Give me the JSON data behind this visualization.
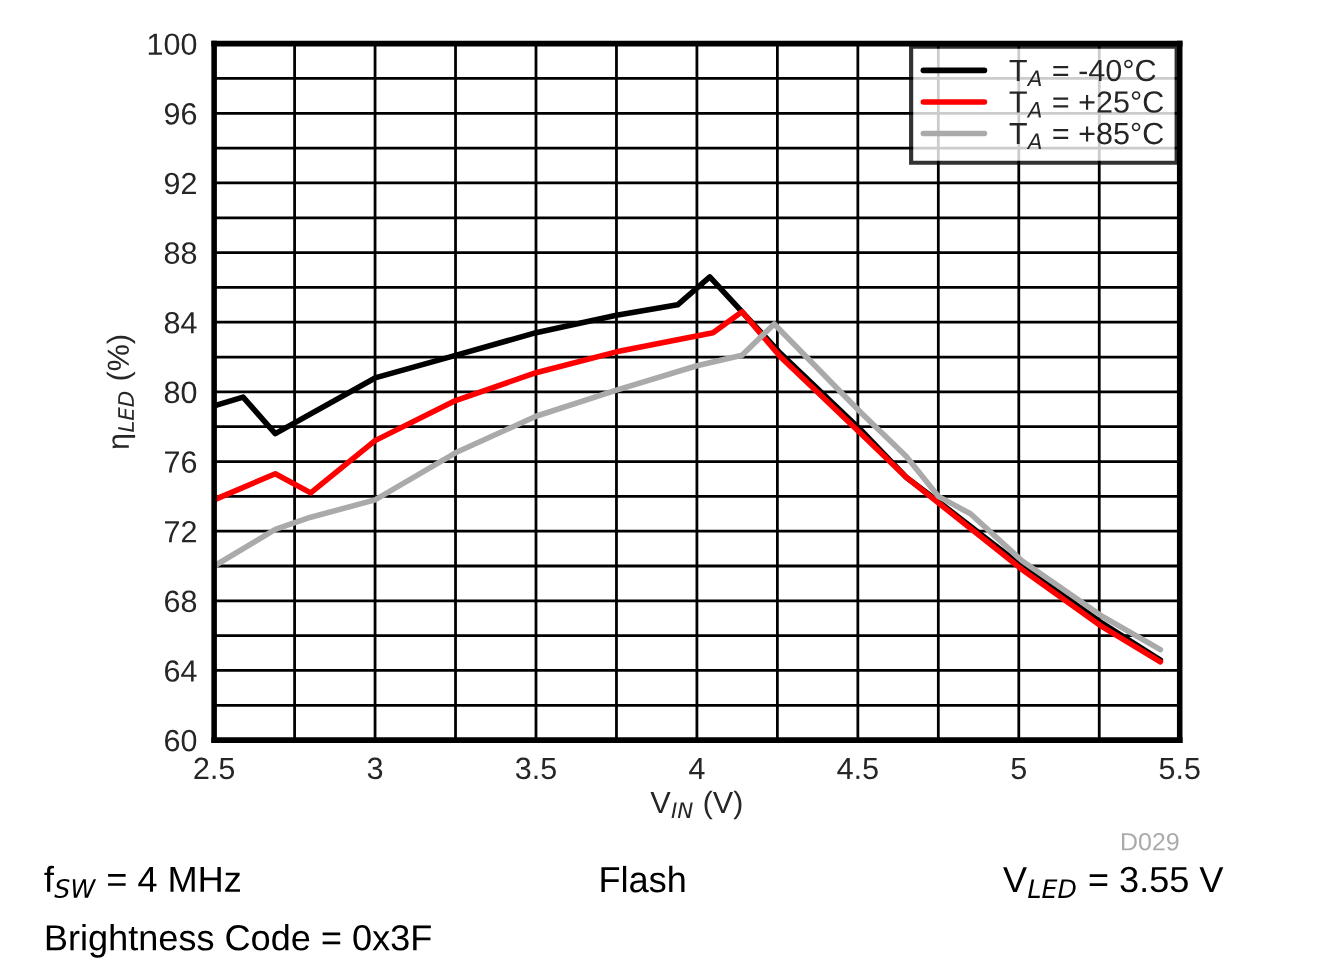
{
  "chart_data": {
    "type": "line",
    "xlabel": "V$_{IN}$ (V)",
    "ylabel": "η$_{LED}$ (%)",
    "xlim": [
      2.5,
      5.5
    ],
    "ylim": [
      60,
      100
    ],
    "xticks": [
      2.5,
      {
        "value": 2.75,
        "label": null
      },
      3,
      {
        "value": 3.25,
        "label": null
      },
      3.5,
      {
        "value": 3.75,
        "label": null
      },
      4,
      {
        "value": 4.25,
        "label": null
      },
      4.5,
      {
        "value": 4.75,
        "label": null
      },
      5,
      {
        "value": 5.25,
        "label": null
      },
      5.5
    ],
    "yticks": [
      60,
      {
        "value": 62,
        "label": null
      },
      64,
      {
        "value": 66,
        "label": null
      },
      68,
      {
        "value": 70,
        "label": null
      },
      72,
      {
        "value": 74,
        "label": null
      },
      76,
      {
        "value": 78,
        "label": null
      },
      80,
      {
        "value": 82,
        "label": null
      },
      84,
      {
        "value": 86,
        "label": null
      },
      88,
      {
        "value": 90,
        "label": null
      },
      92,
      {
        "value": 94,
        "label": null
      },
      96,
      {
        "value": 98,
        "label": null
      },
      100
    ],
    "grid": true,
    "legend": "top right",
    "marker": "none",
    "line_style": "solid",
    "series": [
      {
        "name": "T$_{A}$ = -40°C",
        "color": "#000000",
        "x": [
          2.5,
          2.59,
          2.69,
          3.0,
          3.25,
          3.5,
          3.75,
          3.94,
          4.04,
          4.26,
          4.51,
          4.65,
          4.75,
          5.01,
          5.26,
          5.44
        ],
        "values": [
          79.2,
          79.7,
          77.6,
          80.8,
          82.1,
          83.4,
          84.4,
          85.0,
          86.6,
          82.2,
          77.8,
          75.1,
          73.7,
          70.0,
          66.7,
          64.6
        ]
      },
      {
        "name": "T$_{A}$ = +25°C",
        "color": "#ff0000",
        "x": [
          2.5,
          2.69,
          2.8,
          3.0,
          3.25,
          3.5,
          3.75,
          4.05,
          4.14,
          4.26,
          4.51,
          4.65,
          5.01,
          5.26,
          5.44
        ],
        "values": [
          73.8,
          75.3,
          74.2,
          77.2,
          79.5,
          81.1,
          82.3,
          83.4,
          84.6,
          82.0,
          77.6,
          75.1,
          69.8,
          66.5,
          64.5
        ]
      },
      {
        "name": "T$_{A}$ = +85°C",
        "color": "#aaaaaa",
        "x": [
          2.5,
          2.69,
          2.8,
          3.0,
          3.25,
          3.5,
          3.75,
          4.0,
          4.14,
          4.24,
          4.51,
          4.65,
          4.75,
          4.85,
          5.01,
          5.26,
          5.44
        ],
        "values": [
          70.0,
          72.1,
          72.8,
          73.8,
          76.5,
          78.6,
          80.1,
          81.5,
          82.1,
          83.9,
          78.8,
          76.3,
          74.0,
          73.0,
          70.3,
          67.1,
          65.2
        ]
      }
    ],
    "annotations": [
      "D029",
      "f$_{SW}$ = 4 MHz",
      "Flash",
      "V$_{LED}$ = 3.55 V",
      "Brightness Code = 0x3F"
    ]
  }
}
